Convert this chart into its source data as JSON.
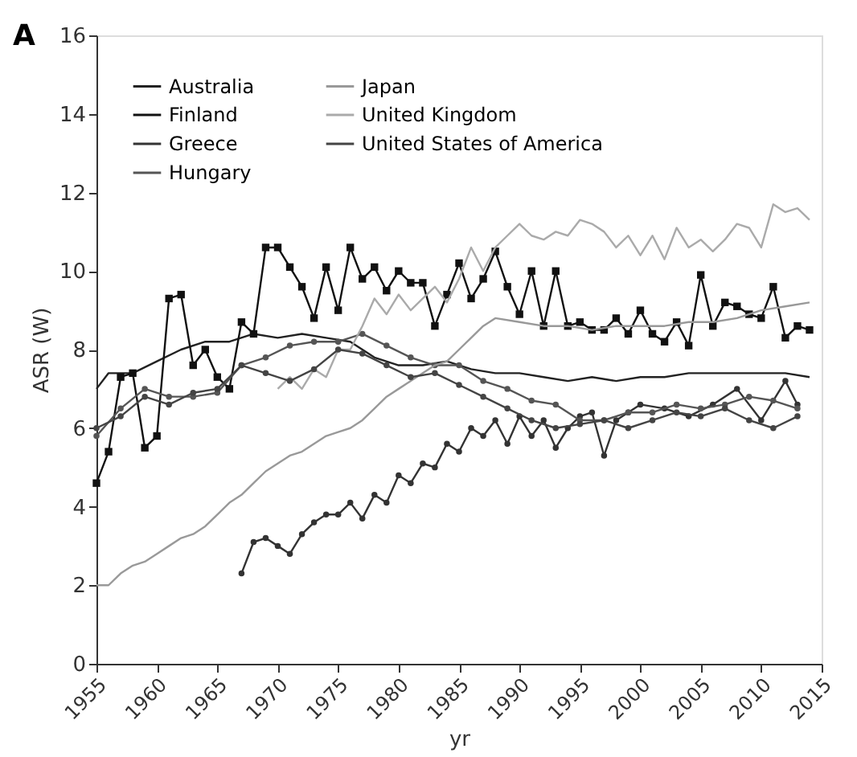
{
  "chart_data": {
    "type": "line",
    "xlabel": "yr",
    "ylabel": "ASR (W)",
    "annotations": [
      "A"
    ],
    "xlim": [
      1955,
      2015
    ],
    "xticks": [
      1955,
      1960,
      1965,
      1970,
      1975,
      1980,
      1985,
      1990,
      1995,
      2000,
      2005,
      2010,
      2015
    ],
    "ylim": [
      0,
      16
    ],
    "yticks": [
      0,
      2,
      4,
      6,
      8,
      10,
      12,
      14,
      16
    ],
    "grid": false,
    "legend": "top left",
    "line_style": "solid",
    "series": [
      {
        "name": "Australia",
        "color": "#222222",
        "marker": "none",
        "x": [
          1955,
          1956,
          1958,
          1960,
          1962,
          1964,
          1966,
          1968,
          1970,
          1972,
          1974,
          1976,
          1978,
          1980,
          1982,
          1984,
          1986,
          1988,
          1990,
          1992,
          1994,
          1996,
          1998,
          2000,
          2002,
          2004,
          2006,
          2008,
          2010,
          2012,
          2014
        ],
        "values": [
          7.0,
          7.4,
          7.4,
          7.7,
          8.0,
          8.2,
          8.2,
          8.4,
          8.3,
          8.4,
          8.3,
          8.2,
          7.8,
          7.6,
          7.6,
          7.7,
          7.5,
          7.4,
          7.4,
          7.3,
          7.2,
          7.3,
          7.2,
          7.3,
          7.3,
          7.4,
          7.4,
          7.4,
          7.4,
          7.4,
          7.3
        ]
      },
      {
        "name": "Finland",
        "color": "#111111",
        "marker": "square",
        "x": [
          1955,
          1956,
          1957,
          1958,
          1959,
          1960,
          1961,
          1962,
          1963,
          1964,
          1965,
          1966,
          1967,
          1968,
          1969,
          1970,
          1971,
          1972,
          1973,
          1974,
          1975,
          1976,
          1977,
          1978,
          1979,
          1980,
          1981,
          1982,
          1983,
          1984,
          1985,
          1986,
          1987,
          1988,
          1989,
          1990,
          1991,
          1992,
          1993,
          1994,
          1995,
          1996,
          1997,
          1998,
          1999,
          2000,
          2001,
          2002,
          2003,
          2004,
          2005,
          2006,
          2007,
          2008,
          2009,
          2010,
          2011,
          2012,
          2013,
          2014
        ],
        "values": [
          4.6,
          5.4,
          7.3,
          7.4,
          5.5,
          5.8,
          9.3,
          9.4,
          7.6,
          8.0,
          7.3,
          7.0,
          8.7,
          8.4,
          10.6,
          10.6,
          10.1,
          9.6,
          8.8,
          10.1,
          9.0,
          10.6,
          9.8,
          10.1,
          9.5,
          10.0,
          9.7,
          9.7,
          8.6,
          9.4,
          10.2,
          9.3,
          9.8,
          10.5,
          9.6,
          8.9,
          10.0,
          8.6,
          10.0,
          8.6,
          8.7,
          8.5,
          8.5,
          8.8,
          8.4,
          9.0,
          8.4,
          8.2,
          8.7,
          8.1,
          9.9,
          8.6,
          9.2,
          9.1,
          8.9,
          8.8,
          9.6,
          8.3,
          8.6,
          8.5
        ]
      },
      {
        "name": "Greece",
        "color": "#333333",
        "marker": "circle",
        "x": [
          1967,
          1968,
          1969,
          1970,
          1971,
          1972,
          1973,
          1974,
          1975,
          1976,
          1977,
          1978,
          1979,
          1980,
          1981,
          1982,
          1983,
          1984,
          1985,
          1986,
          1987,
          1988,
          1989,
          1990,
          1991,
          1992,
          1993,
          1994,
          1995,
          1996,
          1997,
          1998,
          1999,
          2000,
          2002,
          2004,
          2006,
          2008,
          2010,
          2012,
          2013
        ],
        "values": [
          2.3,
          3.1,
          3.2,
          3.0,
          2.8,
          3.3,
          3.6,
          3.8,
          3.8,
          4.1,
          3.7,
          4.3,
          4.1,
          4.8,
          4.6,
          5.1,
          5.0,
          5.6,
          5.4,
          6.0,
          5.8,
          6.2,
          5.6,
          6.3,
          5.8,
          6.2,
          5.5,
          6.0,
          6.3,
          6.4,
          5.3,
          6.2,
          6.4,
          6.6,
          6.5,
          6.3,
          6.6,
          7.0,
          6.2,
          7.2,
          6.6
        ]
      },
      {
        "name": "Hungary",
        "color": "#555555",
        "marker": "circle",
        "x": [
          1955,
          1957,
          1959,
          1961,
          1963,
          1965,
          1967,
          1969,
          1971,
          1973,
          1975,
          1977,
          1979,
          1981,
          1983,
          1985,
          1987,
          1989,
          1991,
          1993,
          1995,
          1997,
          1999,
          2001,
          2003,
          2005,
          2007,
          2009,
          2011,
          2013
        ],
        "values": [
          5.8,
          6.5,
          7.0,
          6.8,
          6.8,
          6.9,
          7.6,
          7.8,
          8.1,
          8.2,
          8.2,
          8.4,
          8.1,
          7.8,
          7.6,
          7.6,
          7.2,
          7.0,
          6.7,
          6.6,
          6.2,
          6.2,
          6.4,
          6.4,
          6.6,
          6.5,
          6.6,
          6.8,
          6.7,
          6.5
        ]
      },
      {
        "name": "Japan",
        "color": "#999999",
        "marker": "none",
        "x": [
          1955,
          1956,
          1957,
          1958,
          1959,
          1960,
          1961,
          1962,
          1963,
          1964,
          1965,
          1966,
          1967,
          1968,
          1969,
          1970,
          1971,
          1972,
          1973,
          1974,
          1975,
          1976,
          1977,
          1978,
          1979,
          1980,
          1981,
          1982,
          1983,
          1984,
          1985,
          1986,
          1987,
          1988,
          1990,
          1992,
          1994,
          1996,
          1998,
          2000,
          2002,
          2004,
          2006,
          2008,
          2010,
          2012,
          2014
        ],
        "values": [
          2.0,
          2.0,
          2.3,
          2.5,
          2.6,
          2.8,
          3.0,
          3.2,
          3.3,
          3.5,
          3.8,
          4.1,
          4.3,
          4.6,
          4.9,
          5.1,
          5.3,
          5.4,
          5.6,
          5.8,
          5.9,
          6.0,
          6.2,
          6.5,
          6.8,
          7.0,
          7.2,
          7.4,
          7.6,
          7.7,
          8.0,
          8.3,
          8.6,
          8.8,
          8.7,
          8.6,
          8.6,
          8.5,
          8.6,
          8.6,
          8.6,
          8.7,
          8.7,
          8.8,
          9.0,
          9.1,
          9.2
        ]
      },
      {
        "name": "United Kingdom",
        "color": "#aaaaaa",
        "marker": "none",
        "x": [
          1970,
          1971,
          1972,
          1973,
          1974,
          1975,
          1976,
          1977,
          1978,
          1979,
          1980,
          1981,
          1982,
          1983,
          1984,
          1985,
          1986,
          1987,
          1988,
          1989,
          1990,
          1991,
          1992,
          1993,
          1994,
          1995,
          1996,
          1997,
          1998,
          1999,
          2000,
          2001,
          2002,
          2003,
          2004,
          2005,
          2006,
          2007,
          2008,
          2009,
          2010,
          2011,
          2012,
          2013,
          2014
        ],
        "values": [
          7.0,
          7.3,
          7.0,
          7.5,
          7.3,
          8.0,
          8.0,
          8.6,
          9.3,
          8.9,
          9.4,
          9.0,
          9.3,
          9.6,
          9.2,
          9.8,
          10.6,
          10.0,
          10.6,
          10.9,
          11.2,
          10.9,
          10.8,
          11.0,
          10.9,
          11.3,
          11.2,
          11.0,
          10.6,
          10.9,
          10.4,
          10.9,
          10.3,
          11.1,
          10.6,
          10.8,
          10.5,
          10.8,
          11.2,
          11.1,
          10.6,
          11.7,
          11.5,
          11.6,
          11.3
        ]
      },
      {
        "name": "United States of America",
        "color": "#444444",
        "marker": "circle",
        "x": [
          1955,
          1957,
          1959,
          1961,
          1963,
          1965,
          1967,
          1969,
          1971,
          1973,
          1975,
          1977,
          1979,
          1981,
          1983,
          1985,
          1987,
          1989,
          1991,
          1993,
          1995,
          1997,
          1999,
          2001,
          2003,
          2005,
          2007,
          2009,
          2011,
          2013
        ],
        "values": [
          6.0,
          6.3,
          6.8,
          6.6,
          6.9,
          7.0,
          7.6,
          7.4,
          7.2,
          7.5,
          8.0,
          7.9,
          7.6,
          7.3,
          7.4,
          7.1,
          6.8,
          6.5,
          6.2,
          6.0,
          6.1,
          6.2,
          6.0,
          6.2,
          6.4,
          6.3,
          6.5,
          6.2,
          6.0,
          6.3
        ]
      }
    ]
  }
}
